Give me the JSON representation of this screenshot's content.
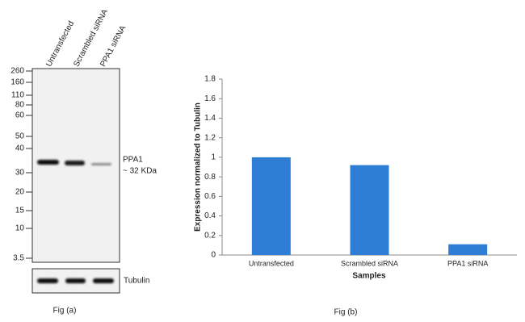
{
  "chart_data": {
    "type": "bar",
    "x_label": "Samples",
    "y_label": "Expression normalized to Tubulin",
    "categories": [
      "Untransfected",
      "Scrambled siRNA",
      "PPA1 siRNA"
    ],
    "values": [
      1.0,
      0.92,
      0.11
    ],
    "color": "#2e7dd4",
    "ylim": [
      0,
      1.8
    ],
    "yticks": [
      0,
      0.2,
      0.4,
      0.6,
      0.8,
      1,
      1.2,
      1.4,
      1.6,
      1.8
    ],
    "caption": "Fig (b)"
  },
  "blot": {
    "lanes": [
      "Untransfected",
      "Scrambled siRNA",
      "PPA1 siRNA"
    ],
    "markers": [
      260,
      160,
      110,
      80,
      60,
      50,
      40,
      30,
      20,
      15,
      10,
      3.5
    ],
    "band_label": "PPA1",
    "band_size": "~ 32 KDa",
    "loading_control": "Tubulin",
    "caption": "Fig (a)"
  }
}
